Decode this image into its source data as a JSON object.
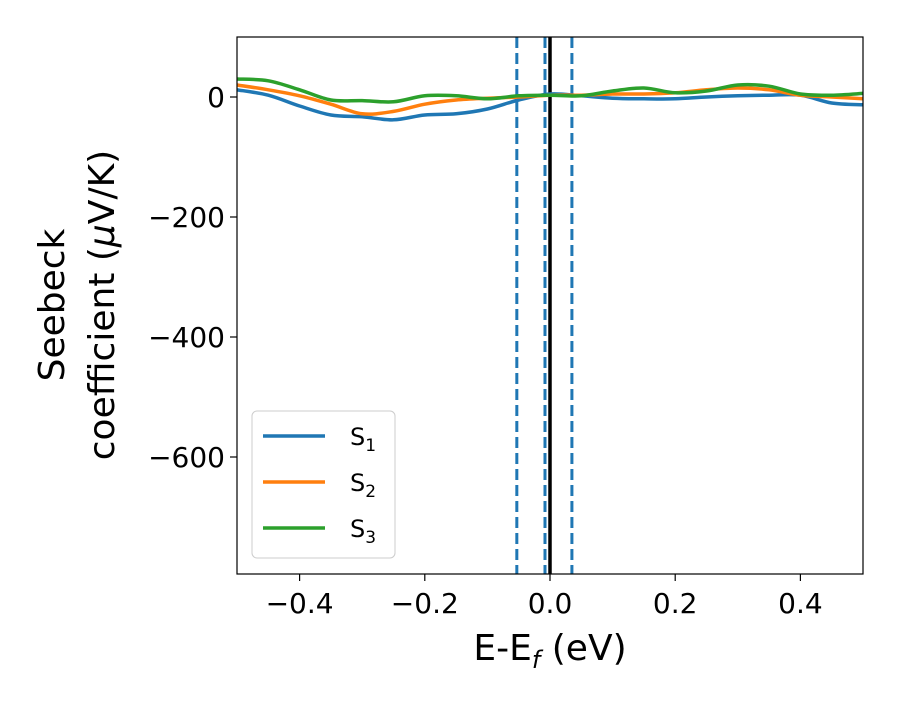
{
  "chart_data": {
    "type": "line",
    "title": "",
    "xlabel": {
      "main": "E-E",
      "sub": "f",
      "unit": " (eV)"
    },
    "ylabel": {
      "line1": "Seebeck",
      "line2_text": "coefficient  (",
      "line2_mu": "μ",
      "line2_unit": "V/K)"
    },
    "xlim": [
      -0.5,
      0.5
    ],
    "ylim": [
      -795,
      100
    ],
    "xticks": [
      -0.4,
      -0.2,
      0.0,
      0.2,
      0.4
    ],
    "xtick_labels": [
      "−0.4",
      "−0.2",
      "0.0",
      "0.2",
      "0.4"
    ],
    "yticks": [
      0,
      -200,
      -400,
      -600
    ],
    "ytick_labels": [
      "0",
      "−200",
      "−400",
      "−600"
    ],
    "grid": false,
    "legend_position": "lower-left",
    "vlines": [
      {
        "x": -0.053,
        "style": "dashed",
        "color": "#1f77b4"
      },
      {
        "x": -0.008,
        "style": "dashed",
        "color": "#1f77b4"
      },
      {
        "x": 0.035,
        "style": "dashed",
        "color": "#1f77b4"
      },
      {
        "x": 0.0,
        "style": "solid",
        "color": "#000000"
      }
    ],
    "series": [
      {
        "name": "S",
        "sub": "1",
        "color": "#1f77b4",
        "x": [
          -0.5,
          -0.45,
          -0.4,
          -0.35,
          -0.3,
          -0.25,
          -0.2,
          -0.15,
          -0.1,
          -0.05,
          0.0,
          0.05,
          0.1,
          0.15,
          0.2,
          0.25,
          0.3,
          0.35,
          0.4,
          0.45,
          0.5
        ],
        "y": [
          12,
          3,
          -15,
          -30,
          -33,
          -38,
          -30,
          -28,
          -20,
          -5,
          5,
          2,
          -2,
          -3,
          -3,
          0,
          2,
          3,
          3,
          -10,
          -13
        ]
      },
      {
        "name": "S",
        "sub": "2",
        "color": "#ff7f0e",
        "x": [
          -0.5,
          -0.45,
          -0.4,
          -0.35,
          -0.3,
          -0.25,
          -0.2,
          -0.15,
          -0.1,
          -0.05,
          0.0,
          0.05,
          0.1,
          0.15,
          0.2,
          0.25,
          0.3,
          0.35,
          0.4,
          0.45,
          0.5
        ],
        "y": [
          20,
          12,
          2,
          -12,
          -28,
          -24,
          -12,
          -5,
          -2,
          0,
          3,
          3,
          5,
          5,
          7,
          12,
          15,
          12,
          3,
          0,
          -3
        ]
      },
      {
        "name": "S",
        "sub": "3",
        "color": "#2ca02c",
        "x": [
          -0.5,
          -0.45,
          -0.4,
          -0.35,
          -0.3,
          -0.25,
          -0.2,
          -0.15,
          -0.1,
          -0.05,
          0.0,
          0.05,
          0.1,
          0.15,
          0.2,
          0.25,
          0.3,
          0.35,
          0.4,
          0.45,
          0.5
        ],
        "y": [
          30,
          27,
          12,
          -5,
          -6,
          -8,
          2,
          2,
          -3,
          2,
          3,
          2,
          10,
          15,
          7,
          10,
          20,
          18,
          5,
          3,
          6
        ]
      }
    ]
  }
}
